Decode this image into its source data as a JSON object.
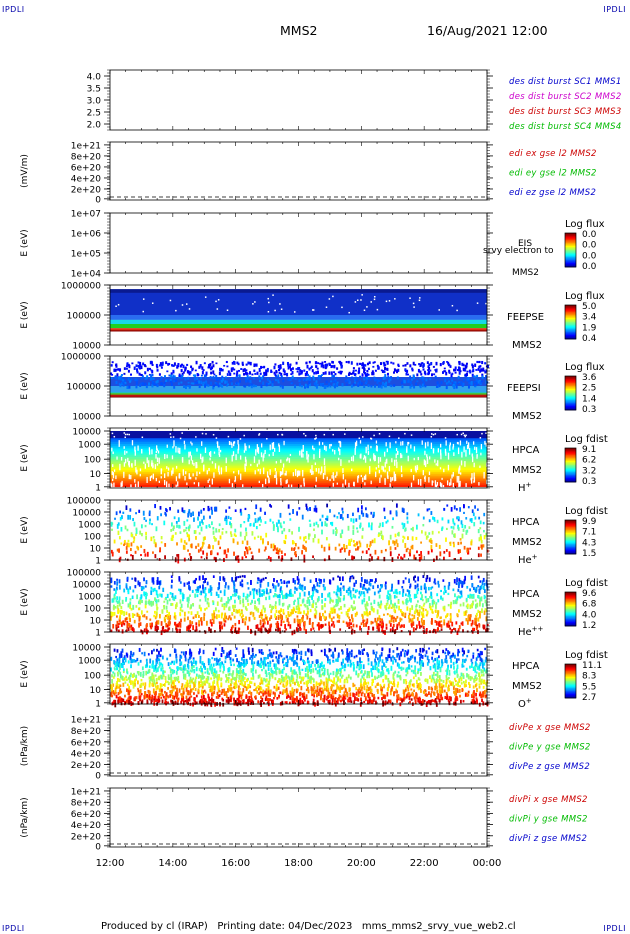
{
  "corner_text": "IPDLI",
  "header": {
    "spacecraft": "MMS2",
    "date_time": "16/Aug/2021 12:00"
  },
  "footer": {
    "produced_by": "Produced by cl (IRAP)",
    "printing_date": "Printing date: 04/Dec/2023",
    "script_name": "mms_mms2_srvy_vue_web2.cl"
  },
  "chart_data": {
    "type": "heatmap",
    "x_ticks": [
      "12:00",
      "14:00",
      "16:00",
      "18:00",
      "20:00",
      "22:00",
      "00:00"
    ],
    "xlim": [
      "12:00",
      "00:00"
    ],
    "panels": [
      {
        "id": "panel-des-dist",
        "type": "line",
        "ylabel": "",
        "yticks": [
          "4.0",
          "3.5",
          "3.0",
          "2.5",
          "2.0"
        ],
        "ylim": [
          1.8,
          4.2
        ],
        "legend": [
          {
            "text": "des dist burst SC1 MMS1",
            "color": "#0000cc"
          },
          {
            "text": "des dist burst SC2 MMS2",
            "color": "#cc00cc"
          },
          {
            "text": "des dist burst SC3 MMS3",
            "color": "#cc0000"
          },
          {
            "text": "des dist burst SC4 MMS4",
            "color": "#00bb00"
          }
        ]
      },
      {
        "id": "panel-edi",
        "type": "line",
        "ylabel": "(mV/m)",
        "yticks": [
          "1e+21",
          "8e+20",
          "6e+20",
          "4e+20",
          "2e+20",
          "0"
        ],
        "ylim": [
          0,
          1e+21
        ],
        "zero_line": true,
        "legend": [
          {
            "text": "edi ex gse l2 MMS2",
            "color": "#cc0000"
          },
          {
            "text": "edi ey gse l2 MMS2",
            "color": "#00bb00"
          },
          {
            "text": "edi ez gse l2 MMS2",
            "color": "#0000cc"
          }
        ]
      },
      {
        "id": "panel-eis",
        "type": "heatmap",
        "ylabel": "E (eV)",
        "log_y": true,
        "yticks": [
          "1e+07",
          "1e+06",
          "1e+05",
          "1e+04"
        ],
        "ylim": [
          10000.0,
          10000000.0
        ],
        "instrument": "EIS",
        "instrument_lines": [
          "EIS",
          "MMS2"
        ],
        "overlay_text": "srvy electron to",
        "colorbar_title": "Log flux",
        "colorbar_ticks": [
          "0.0",
          "0.0",
          "0.0",
          "0.0"
        ],
        "data": "empty"
      },
      {
        "id": "panel-feepse",
        "type": "heatmap",
        "ylabel": "E (eV)",
        "log_y": true,
        "yticks": [
          "1000000",
          "100000",
          "10000"
        ],
        "ylim": [
          10000,
          1000000
        ],
        "instrument_lines": [
          "FEEPSE",
          "MMS2"
        ],
        "colorbar_title": "Log flux",
        "colorbar_ticks": [
          "5.0",
          "3.4",
          "1.9",
          "0.4"
        ]
      },
      {
        "id": "panel-feepsi",
        "type": "heatmap",
        "ylabel": "E (eV)",
        "log_y": true,
        "yticks": [
          "1000000",
          "100000",
          "10000"
        ],
        "ylim": [
          10000,
          1000000
        ],
        "instrument_lines": [
          "FEEPSI",
          "MMS2"
        ],
        "colorbar_title": "Log flux",
        "colorbar_ticks": [
          "3.6",
          "2.5",
          "1.4",
          "0.3"
        ]
      },
      {
        "id": "panel-hpca-h",
        "type": "heatmap",
        "ylabel": "E (eV)",
        "log_y": true,
        "yticks": [
          "10000",
          "1000",
          "100",
          "10",
          "1"
        ],
        "ylim": [
          1,
          30000
        ],
        "instrument_lines": [
          "HPCA",
          "MMS2"
        ],
        "species": "H",
        "species_sup": "+",
        "colorbar_title": "Log fdist",
        "colorbar_ticks": [
          "9.1",
          "6.2",
          "3.2",
          "0.3"
        ]
      },
      {
        "id": "panel-hpca-he",
        "type": "heatmap",
        "ylabel": "E (eV)",
        "log_y": true,
        "yticks": [
          "100000",
          "10000",
          "1000",
          "100",
          "10",
          "1"
        ],
        "ylim": [
          1,
          100000
        ],
        "instrument_lines": [
          "HPCA",
          "MMS2"
        ],
        "species": "He",
        "species_sup": "+",
        "colorbar_title": "Log fdist",
        "colorbar_ticks": [
          "9.9",
          "7.1",
          "4.3",
          "1.5"
        ]
      },
      {
        "id": "panel-hpca-he2",
        "type": "heatmap",
        "ylabel": "E (eV)",
        "log_y": true,
        "yticks": [
          "100000",
          "10000",
          "1000",
          "100",
          "10",
          "1"
        ],
        "ylim": [
          1,
          100000
        ],
        "instrument_lines": [
          "HPCA",
          "MMS2"
        ],
        "species": "He",
        "species_sup": "++",
        "colorbar_title": "Log fdist",
        "colorbar_ticks": [
          "9.6",
          "6.8",
          "4.0",
          "1.2"
        ]
      },
      {
        "id": "panel-hpca-o",
        "type": "heatmap",
        "ylabel": "E (eV)",
        "log_y": true,
        "yticks": [
          "10000",
          "1000",
          "100",
          "10",
          "1"
        ],
        "ylim": [
          1,
          30000
        ],
        "instrument_lines": [
          "HPCA",
          "MMS2"
        ],
        "species": "O",
        "species_sup": "+",
        "colorbar_title": "Log fdist",
        "colorbar_ticks": [
          "11.1",
          "8.3",
          "5.5",
          "2.7"
        ]
      },
      {
        "id": "panel-divpe",
        "type": "line",
        "ylabel": "(nPa/km)",
        "yticks": [
          "1e+21",
          "8e+20",
          "6e+20",
          "4e+20",
          "2e+20",
          "0"
        ],
        "ylim": [
          0,
          1e+21
        ],
        "zero_line": true,
        "legend": [
          {
            "text": "divPe x gse MMS2",
            "color": "#cc0000"
          },
          {
            "text": "divPe y gse MMS2",
            "color": "#00bb00"
          },
          {
            "text": "divPe z gse MMS2",
            "color": "#0000cc"
          }
        ]
      },
      {
        "id": "panel-divpi",
        "type": "line",
        "ylabel": "(nPa/km)",
        "yticks": [
          "1e+21",
          "8e+20",
          "6e+20",
          "4e+20",
          "2e+20",
          "0"
        ],
        "ylim": [
          0,
          1e+21
        ],
        "zero_line": true,
        "legend": [
          {
            "text": "divPi x gse MMS2",
            "color": "#cc0000"
          },
          {
            "text": "divPi y gse MMS2",
            "color": "#00bb00"
          },
          {
            "text": "divPi z gse MMS2",
            "color": "#0000cc"
          }
        ]
      }
    ]
  }
}
